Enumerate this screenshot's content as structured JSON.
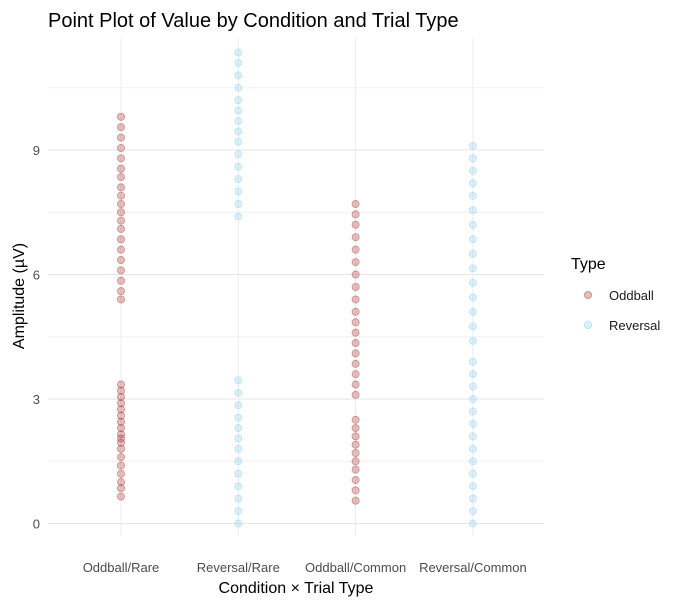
{
  "chart_data": {
    "type": "scatter",
    "title": "Point Plot of Value by Condition and Trial Type",
    "xlabel": "Condition × Trial Type",
    "ylabel": "Amplitude (µV)",
    "categories": [
      "Oddball/Rare",
      "Reversal/Rare",
      "Oddball/Common",
      "Reversal/Common"
    ],
    "yticks": [
      0,
      3,
      6,
      9
    ],
    "ylim": [
      -0.3,
      11.7
    ],
    "grid": true,
    "legend": {
      "title": "Type",
      "placement": "right"
    },
    "series": [
      {
        "name": "Oddball",
        "color": "#a52a2a",
        "points": [
          [
            "Oddball/Rare",
            0.65
          ],
          [
            "Oddball/Rare",
            0.85
          ],
          [
            "Oddball/Rare",
            1.0
          ],
          [
            "Oddball/Rare",
            1.2
          ],
          [
            "Oddball/Rare",
            1.4
          ],
          [
            "Oddball/Rare",
            1.6
          ],
          [
            "Oddball/Rare",
            1.8
          ],
          [
            "Oddball/Rare",
            1.95
          ],
          [
            "Oddball/Rare",
            2.05
          ],
          [
            "Oddball/Rare",
            2.15
          ],
          [
            "Oddball/Rare",
            2.3
          ],
          [
            "Oddball/Rare",
            2.45
          ],
          [
            "Oddball/Rare",
            2.6
          ],
          [
            "Oddball/Rare",
            2.75
          ],
          [
            "Oddball/Rare",
            2.9
          ],
          [
            "Oddball/Rare",
            3.05
          ],
          [
            "Oddball/Rare",
            3.2
          ],
          [
            "Oddball/Rare",
            3.35
          ],
          [
            "Oddball/Rare",
            5.4
          ],
          [
            "Oddball/Rare",
            5.6
          ],
          [
            "Oddball/Rare",
            5.85
          ],
          [
            "Oddball/Rare",
            6.1
          ],
          [
            "Oddball/Rare",
            6.35
          ],
          [
            "Oddball/Rare",
            6.6
          ],
          [
            "Oddball/Rare",
            6.85
          ],
          [
            "Oddball/Rare",
            7.1
          ],
          [
            "Oddball/Rare",
            7.3
          ],
          [
            "Oddball/Rare",
            7.5
          ],
          [
            "Oddball/Rare",
            7.7
          ],
          [
            "Oddball/Rare",
            7.9
          ],
          [
            "Oddball/Rare",
            8.1
          ],
          [
            "Oddball/Rare",
            8.35
          ],
          [
            "Oddball/Rare",
            8.55
          ],
          [
            "Oddball/Rare",
            8.8
          ],
          [
            "Oddball/Rare",
            9.05
          ],
          [
            "Oddball/Rare",
            9.3
          ],
          [
            "Oddball/Rare",
            9.55
          ],
          [
            "Oddball/Rare",
            9.8
          ],
          [
            "Oddball/Common",
            0.55
          ],
          [
            "Oddball/Common",
            0.8
          ],
          [
            "Oddball/Common",
            1.05
          ],
          [
            "Oddball/Common",
            1.3
          ],
          [
            "Oddball/Common",
            1.5
          ],
          [
            "Oddball/Common",
            1.7
          ],
          [
            "Oddball/Common",
            1.9
          ],
          [
            "Oddball/Common",
            2.1
          ],
          [
            "Oddball/Common",
            2.3
          ],
          [
            "Oddball/Common",
            2.5
          ],
          [
            "Oddball/Common",
            3.1
          ],
          [
            "Oddball/Common",
            3.35
          ],
          [
            "Oddball/Common",
            3.6
          ],
          [
            "Oddball/Common",
            3.85
          ],
          [
            "Oddball/Common",
            4.1
          ],
          [
            "Oddball/Common",
            4.35
          ],
          [
            "Oddball/Common",
            4.6
          ],
          [
            "Oddball/Common",
            4.85
          ],
          [
            "Oddball/Common",
            5.1
          ],
          [
            "Oddball/Common",
            5.4
          ],
          [
            "Oddball/Common",
            5.7
          ],
          [
            "Oddball/Common",
            6.0
          ],
          [
            "Oddball/Common",
            6.3
          ],
          [
            "Oddball/Common",
            6.6
          ],
          [
            "Oddball/Common",
            6.9
          ],
          [
            "Oddball/Common",
            7.2
          ],
          [
            "Oddball/Common",
            7.45
          ],
          [
            "Oddball/Common",
            7.7
          ]
        ]
      },
      {
        "name": "Reversal",
        "color": "#87ceeb",
        "points": [
          [
            "Reversal/Rare",
            0.0
          ],
          [
            "Reversal/Rare",
            0.3
          ],
          [
            "Reversal/Rare",
            0.6
          ],
          [
            "Reversal/Rare",
            0.9
          ],
          [
            "Reversal/Rare",
            1.2
          ],
          [
            "Reversal/Rare",
            1.5
          ],
          [
            "Reversal/Rare",
            1.8
          ],
          [
            "Reversal/Rare",
            2.05
          ],
          [
            "Reversal/Rare",
            2.3
          ],
          [
            "Reversal/Rare",
            2.55
          ],
          [
            "Reversal/Rare",
            2.85
          ],
          [
            "Reversal/Rare",
            3.15
          ],
          [
            "Reversal/Rare",
            3.45
          ],
          [
            "Reversal/Rare",
            7.4
          ],
          [
            "Reversal/Rare",
            7.7
          ],
          [
            "Reversal/Rare",
            8.0
          ],
          [
            "Reversal/Rare",
            8.3
          ],
          [
            "Reversal/Rare",
            8.6
          ],
          [
            "Reversal/Rare",
            8.9
          ],
          [
            "Reversal/Rare",
            9.2
          ],
          [
            "Reversal/Rare",
            9.45
          ],
          [
            "Reversal/Rare",
            9.7
          ],
          [
            "Reversal/Rare",
            9.95
          ],
          [
            "Reversal/Rare",
            10.2
          ],
          [
            "Reversal/Rare",
            10.5
          ],
          [
            "Reversal/Rare",
            10.8
          ],
          [
            "Reversal/Rare",
            11.1
          ],
          [
            "Reversal/Rare",
            11.35
          ],
          [
            "Reversal/Common",
            0.0
          ],
          [
            "Reversal/Common",
            0.3
          ],
          [
            "Reversal/Common",
            0.6
          ],
          [
            "Reversal/Common",
            0.9
          ],
          [
            "Reversal/Common",
            1.2
          ],
          [
            "Reversal/Common",
            1.5
          ],
          [
            "Reversal/Common",
            1.8
          ],
          [
            "Reversal/Common",
            2.1
          ],
          [
            "Reversal/Common",
            2.4
          ],
          [
            "Reversal/Common",
            2.7
          ],
          [
            "Reversal/Common",
            3.0
          ],
          [
            "Reversal/Common",
            3.3
          ],
          [
            "Reversal/Common",
            3.6
          ],
          [
            "Reversal/Common",
            3.9
          ],
          [
            "Reversal/Common",
            4.4
          ],
          [
            "Reversal/Common",
            4.75
          ],
          [
            "Reversal/Common",
            5.1
          ],
          [
            "Reversal/Common",
            5.45
          ],
          [
            "Reversal/Common",
            5.8
          ],
          [
            "Reversal/Common",
            6.15
          ],
          [
            "Reversal/Common",
            6.5
          ],
          [
            "Reversal/Common",
            6.85
          ],
          [
            "Reversal/Common",
            7.2
          ],
          [
            "Reversal/Common",
            7.55
          ],
          [
            "Reversal/Common",
            7.9
          ],
          [
            "Reversal/Common",
            8.2
          ],
          [
            "Reversal/Common",
            8.5
          ],
          [
            "Reversal/Common",
            8.8
          ],
          [
            "Reversal/Common",
            9.1
          ]
        ]
      }
    ]
  }
}
